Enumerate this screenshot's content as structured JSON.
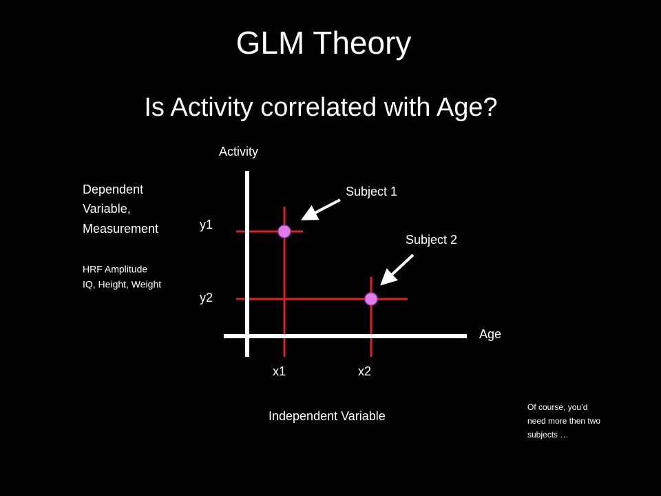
{
  "title": "GLM Theory",
  "subtitle": "Is Activity correlated with Age?",
  "diagram": {
    "y_axis_label": "Activity",
    "x_axis_label": "Age",
    "dependent_label": [
      "Dependent",
      "Variable,",
      "Measurement"
    ],
    "dependent_examples": [
      "HRF Amplitude",
      "IQ, Height, Weight"
    ],
    "y_ticks": [
      "y1",
      "y2"
    ],
    "x_ticks": [
      "x1",
      "x2"
    ],
    "subjects": [
      "Subject 1",
      "Subject 2"
    ],
    "independent_label": "Independent Variable"
  },
  "note": [
    "Of course, you’d",
    "need more then two",
    "subjects …"
  ]
}
